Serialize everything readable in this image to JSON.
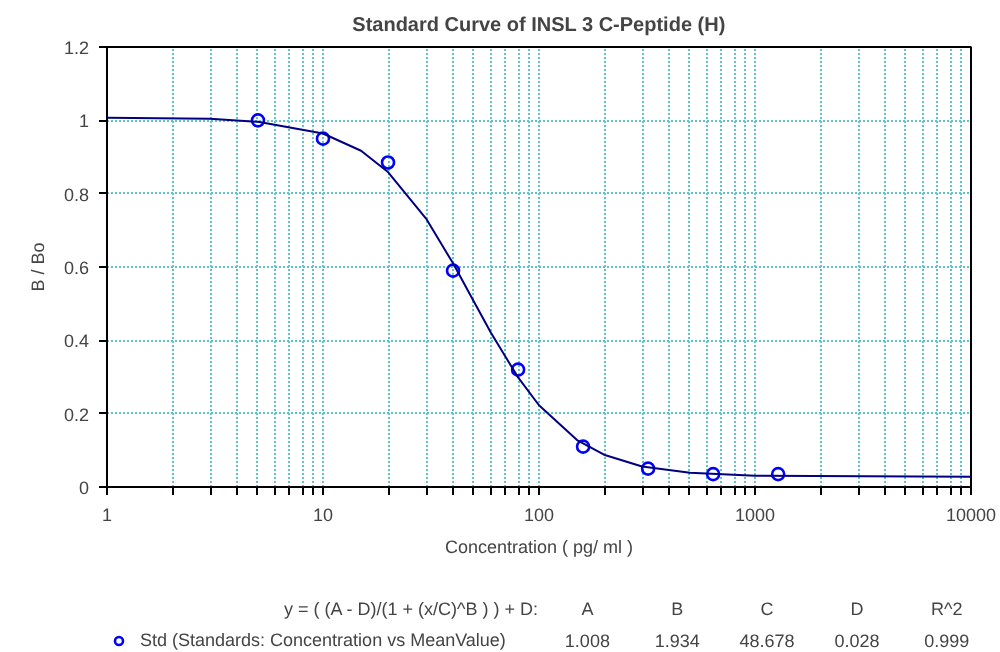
{
  "chart_data": {
    "type": "scatter",
    "title": "Standard Curve of INSL 3 C-Peptide (H)",
    "xlabel": "Concentration ( pg/ ml )",
    "ylabel": "B / Bo",
    "log": "x",
    "xlim": [
      1,
      10000
    ],
    "ylim": [
      0,
      1.2
    ],
    "xticks": [
      1,
      {
        "value": 2,
        "label": null
      },
      {
        "value": 3,
        "label": null
      },
      {
        "value": 4,
        "label": null
      },
      {
        "value": 5,
        "label": null
      },
      {
        "value": 6,
        "label": null
      },
      {
        "value": 7,
        "label": null
      },
      {
        "value": 8,
        "label": null
      },
      {
        "value": 9,
        "label": null
      },
      10,
      {
        "value": 20,
        "label": null
      },
      {
        "value": 30,
        "label": null
      },
      {
        "value": 40,
        "label": null
      },
      {
        "value": 50,
        "label": null
      },
      {
        "value": 60,
        "label": null
      },
      {
        "value": 70,
        "label": null
      },
      {
        "value": 80,
        "label": null
      },
      {
        "value": 90,
        "label": null
      },
      100,
      {
        "value": 200,
        "label": null
      },
      {
        "value": 300,
        "label": null
      },
      {
        "value": 400,
        "label": null
      },
      {
        "value": 500,
        "label": null
      },
      {
        "value": 600,
        "label": null
      },
      {
        "value": 700,
        "label": null
      },
      {
        "value": 800,
        "label": null
      },
      {
        "value": 900,
        "label": null
      },
      1000,
      {
        "value": 2000,
        "label": null
      },
      {
        "value": 3000,
        "label": null
      },
      {
        "value": 4000,
        "label": null
      },
      {
        "value": 5000,
        "label": null
      },
      {
        "value": 6000,
        "label": null
      },
      {
        "value": 7000,
        "label": null
      },
      {
        "value": 8000,
        "label": null
      },
      {
        "value": 9000,
        "label": null
      },
      10000
    ],
    "yticks": [
      0,
      0.2,
      0.4,
      0.6,
      0.8,
      1,
      1.2
    ],
    "grid": true,
    "legend": "bottom left",
    "marker": "circle",
    "series": [
      {
        "name": "Std (Standards: Concentration vs MeanValue)",
        "color": "#0000ff",
        "x": [
          5,
          10,
          20,
          40,
          80,
          160,
          320,
          640,
          1280
        ],
        "values": [
          1.0,
          0.95,
          0.885,
          0.59,
          0.32,
          0.11,
          0.05,
          0.035,
          0.035
        ]
      },
      {
        "type": "line",
        "color": "#000080",
        "marker": "none",
        "x": [
          1,
          3,
          5,
          10,
          15,
          20,
          30,
          40,
          50,
          60,
          80,
          100,
          150,
          200,
          300,
          500,
          1000,
          10000
        ],
        "values": [
          1.007,
          1.004,
          0.996,
          0.964,
          0.917,
          0.859,
          0.732,
          0.61,
          0.505,
          0.42,
          0.299,
          0.223,
          0.128,
          0.088,
          0.056,
          0.039,
          0.031,
          0.028
        ]
      }
    ],
    "annotations": [
      "y = ( (A - D)/(1 + (x/C)^B ) ) + D:",
      "A",
      "B",
      "C",
      "D",
      "R^2",
      "1.008",
      "1.934",
      "48.678",
      "0.028",
      "0.999"
    ]
  }
}
